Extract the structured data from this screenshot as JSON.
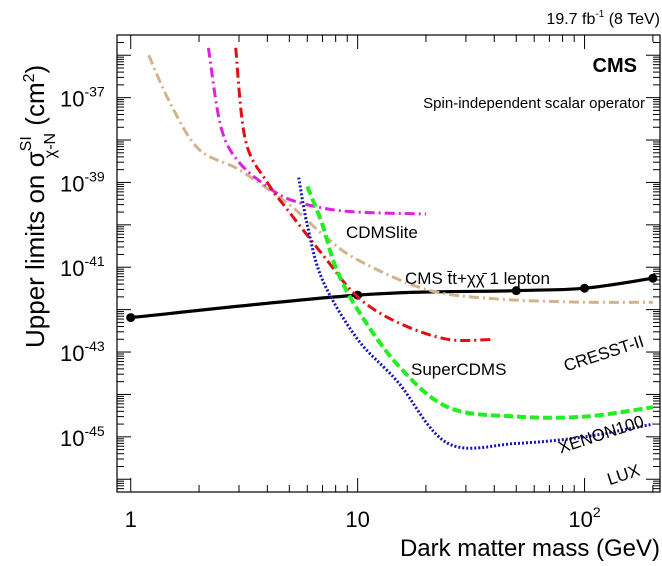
{
  "header": {
    "lumi_base": "19.7 fb",
    "lumi_sup": "-1",
    "lumi_tail": " (8 TeV)"
  },
  "labels": {
    "cms": "CMS",
    "operator": "Spin-independent scalar operator"
  },
  "chart_data": {
    "type": "line",
    "title": "",
    "xlabel": "Dark matter mass (GeV)",
    "ylabel": {
      "base": "Upper limits on σ",
      "sup": "SI",
      "sub": "χ-N",
      "tail": " (cm",
      "tail_sup": "2",
      "tail_end": ")"
    },
    "xscale": "log",
    "yscale": "log",
    "xlim": [
      0.87,
      215
    ],
    "ylim": [
      5e-47,
      3e-36
    ],
    "x_ticks": [
      {
        "value": 1,
        "base": "1",
        "sup": ""
      },
      {
        "value": 10,
        "base": "10",
        "sup": ""
      },
      {
        "value": 100,
        "base": "10",
        "sup": "2"
      }
    ],
    "y_ticks": [
      {
        "value": 1e-37,
        "base": "10",
        "sup": "-37"
      },
      {
        "value": 1e-39,
        "base": "10",
        "sup": "-39"
      },
      {
        "value": 1e-41,
        "base": "10",
        "sup": "-41"
      },
      {
        "value": 1e-43,
        "base": "10",
        "sup": "-43"
      },
      {
        "value": 1e-45,
        "base": "10",
        "sup": "-45"
      }
    ],
    "series": [
      {
        "name": "CMS t̄t+χχ̄ 1 lepton",
        "color": "#000000",
        "style": "solid",
        "width": 3.2,
        "markers": true,
        "label_pos": "middle",
        "points": [
          [
            1,
            6.5e-43
          ],
          [
            10,
            2.2e-42
          ],
          [
            50,
            2.8e-42
          ],
          [
            100,
            3.2e-42
          ],
          [
            200,
            5.5e-42
          ]
        ]
      },
      {
        "name": "CRESST-II",
        "color": "#d2b48c",
        "style": "dashdot",
        "width": 3,
        "points": [
          [
            1.2,
            1e-36
          ],
          [
            1.5,
            7e-38
          ],
          [
            2,
            6e-39
          ],
          [
            3,
            2e-39
          ],
          [
            5,
            3e-40
          ],
          [
            7,
            6e-41
          ],
          [
            10,
            1.5e-41
          ],
          [
            20,
            3e-42
          ],
          [
            40,
            1.8e-42
          ],
          [
            100,
            1.5e-42
          ],
          [
            200,
            1.5e-42
          ]
        ]
      },
      {
        "name": "CDMSlite",
        "color": "#e020e0",
        "style": "dashdot",
        "width": 3,
        "points": [
          [
            2.2,
            1.5e-36
          ],
          [
            2.5,
            2e-38
          ],
          [
            3,
            3e-39
          ],
          [
            4,
            8e-40
          ],
          [
            5,
            4e-40
          ],
          [
            7,
            2.5e-40
          ],
          [
            10,
            2e-40
          ],
          [
            20,
            1.8e-40
          ]
        ]
      },
      {
        "name": "SuperCDMS",
        "color": "#dd1111",
        "style": "dashdot",
        "width": 3,
        "points": [
          [
            2.9,
            1.5e-36
          ],
          [
            3.2,
            1e-38
          ],
          [
            4,
            1e-39
          ],
          [
            5,
            2e-40
          ],
          [
            7,
            2e-41
          ],
          [
            10,
            2e-42
          ],
          [
            15,
            5e-43
          ],
          [
            25,
            2e-43
          ],
          [
            40,
            2e-43
          ]
        ]
      },
      {
        "name": "XENON100",
        "color": "#22ee22",
        "style": "dashed",
        "width": 4,
        "points": [
          [
            6,
            8e-40
          ],
          [
            7,
            1e-40
          ],
          [
            8,
            1e-41
          ],
          [
            10,
            1e-42
          ],
          [
            15,
            5e-44
          ],
          [
            25,
            5e-45
          ],
          [
            50,
            3e-45
          ],
          [
            100,
            3e-45
          ],
          [
            200,
            5e-45
          ]
        ]
      },
      {
        "name": "LUX",
        "color": "#1515bb",
        "style": "dotted",
        "width": 3,
        "points": [
          [
            5.5,
            1.3e-39
          ],
          [
            6,
            1e-40
          ],
          [
            7,
            5e-42
          ],
          [
            10,
            2e-43
          ],
          [
            15,
            2e-44
          ],
          [
            25,
            7e-46
          ],
          [
            50,
            7e-46
          ],
          [
            100,
            1e-45
          ],
          [
            200,
            2e-45
          ]
        ]
      }
    ]
  }
}
